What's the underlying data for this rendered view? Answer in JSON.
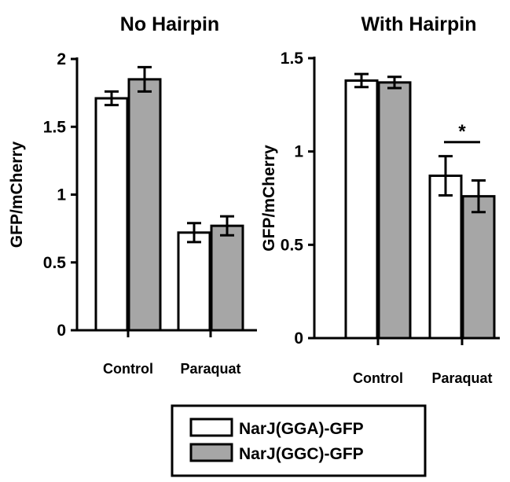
{
  "chart_data": [
    {
      "type": "bar",
      "title": "No Hairpin",
      "ylabel": "GFP/mCherry",
      "xlabel": "",
      "categories": [
        "Control",
        "Paraquat"
      ],
      "ylim": [
        0,
        2
      ],
      "yticks": [
        0,
        0.5,
        1,
        1.5,
        2
      ],
      "ytick_labels": [
        "0",
        "0.5",
        "1",
        "1.5",
        "2"
      ],
      "series": [
        {
          "name": "NarJ(GGA)-GFP",
          "values": [
            1.71,
            0.72
          ],
          "errors": [
            0.05,
            0.07
          ]
        },
        {
          "name": "NarJ(GGC)-GFP",
          "values": [
            1.85,
            0.77
          ],
          "errors": [
            0.09,
            0.07
          ]
        }
      ],
      "annotations": []
    },
    {
      "type": "bar",
      "title": "With Hairpin",
      "ylabel": "GFP/mCherry",
      "xlabel": "",
      "categories": [
        "Control",
        "Paraquat"
      ],
      "ylim": [
        0,
        1.5
      ],
      "yticks": [
        0,
        0.5,
        1,
        1.5
      ],
      "ytick_labels": [
        "0",
        "0.5",
        "1",
        "1.5"
      ],
      "series": [
        {
          "name": "NarJ(GGA)-GFP",
          "values": [
            1.38,
            0.87
          ],
          "errors": [
            0.035,
            0.105
          ]
        },
        {
          "name": "NarJ(GGC)-GFP",
          "values": [
            1.37,
            0.76
          ],
          "errors": [
            0.03,
            0.085
          ]
        }
      ],
      "annotations": [
        {
          "text": "*",
          "category": "Paraquat",
          "between_series": [
            0,
            1
          ],
          "at_value": 1.05
        }
      ]
    }
  ],
  "legend": {
    "placement": "bottom-center",
    "entries": [
      {
        "label": "NarJ(GGA)-GFP",
        "color": "#ffffff"
      },
      {
        "label": "NarJ(GGC)-GFP",
        "color": "#a6a6a6"
      }
    ]
  },
  "colors": {
    "series": [
      "#ffffff",
      "#a6a6a6"
    ],
    "stroke": "#000000"
  }
}
